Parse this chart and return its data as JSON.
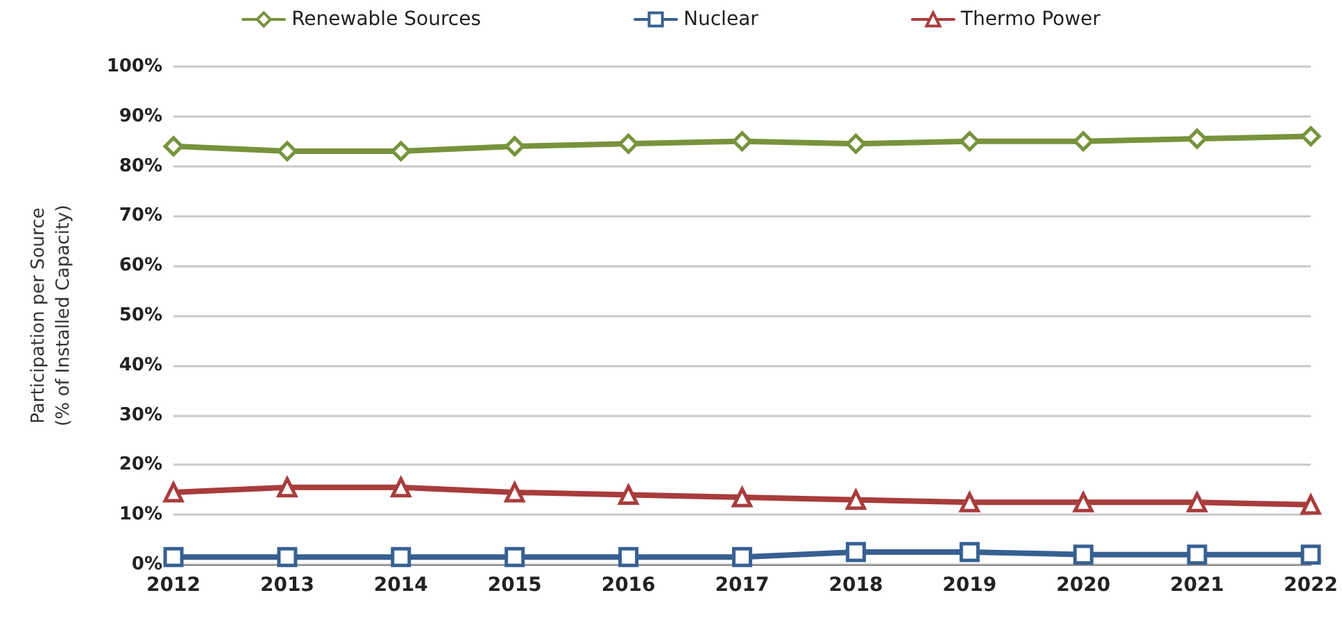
{
  "chart_data": {
    "type": "line",
    "ylabel": "Participation per Source\n(% of Installed Capacity)",
    "categories": [
      "2012",
      "2013",
      "2014",
      "2015",
      "2016",
      "2017",
      "2018",
      "2019",
      "2020",
      "2021",
      "2022"
    ],
    "series": [
      {
        "name": "Renewable Sources",
        "color": "#77933c",
        "marker": "diamond",
        "values": [
          84,
          83,
          83,
          84,
          84.5,
          85,
          84.5,
          85,
          85,
          85.5,
          86
        ]
      },
      {
        "name": "Nuclear",
        "color": "#376092",
        "marker": "square",
        "values": [
          1.5,
          1.5,
          1.5,
          1.5,
          1.5,
          1.5,
          2.5,
          2.5,
          2,
          2,
          2
        ]
      },
      {
        "name": "Thermo Power",
        "color": "#a83c3c",
        "marker": "triangle",
        "values": [
          14.5,
          15.5,
          15.5,
          14.5,
          14,
          13.5,
          13,
          12.5,
          12.5,
          12.5,
          12
        ]
      }
    ],
    "ylim": [
      0,
      100
    ],
    "yticks": [
      {
        "value": 0,
        "label": "0%"
      },
      {
        "value": 10,
        "label": "10%"
      },
      {
        "value": 20,
        "label": "20%"
      },
      {
        "value": 30,
        "label": "30%"
      },
      {
        "value": 40,
        "label": "40%"
      },
      {
        "value": 50,
        "label": "50%"
      },
      {
        "value": 60,
        "label": "60%"
      },
      {
        "value": 70,
        "label": "70%"
      },
      {
        "value": 80,
        "label": "80%"
      },
      {
        "value": 90,
        "label": "90%"
      },
      {
        "value": 100,
        "label": "100%"
      }
    ],
    "grid": "y",
    "legend": "top",
    "line_style": "solid"
  }
}
